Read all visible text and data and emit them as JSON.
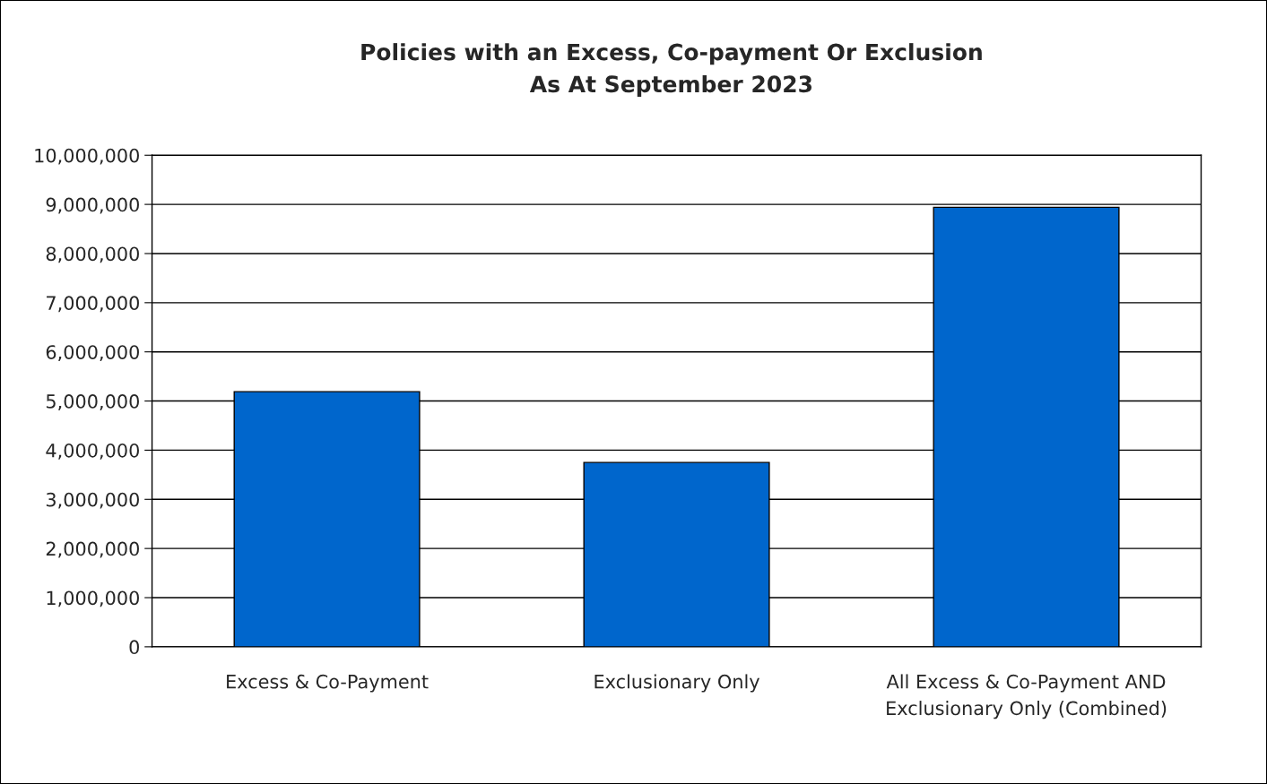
{
  "chart_data": {
    "type": "bar",
    "title": "Policies with an Excess, Co-payment Or Exclusion\nAs At September 2023",
    "categories": [
      "Excess & Co-Payment",
      "Exclusionary Only",
      "All Excess & Co-Payment AND\nExclusionary Only (Combined)"
    ],
    "values": [
      5190000,
      3750000,
      8940000
    ],
    "color": "#0066cc",
    "ylim": [
      0,
      10000000
    ],
    "yticks": [
      {
        "value": 0,
        "label": "0"
      },
      {
        "value": 1000000,
        "label": "1,000,000"
      },
      {
        "value": 2000000,
        "label": "2,000,000"
      },
      {
        "value": 3000000,
        "label": "3,000,000"
      },
      {
        "value": 4000000,
        "label": "4,000,000"
      },
      {
        "value": 5000000,
        "label": "5,000,000"
      },
      {
        "value": 6000000,
        "label": "6,000,000"
      },
      {
        "value": 7000000,
        "label": "7,000,000"
      },
      {
        "value": 8000000,
        "label": "8,000,000"
      },
      {
        "value": 9000000,
        "label": "9,000,000"
      },
      {
        "value": 10000000,
        "label": "10,000,000"
      }
    ],
    "grid": "y",
    "legend": false
  }
}
